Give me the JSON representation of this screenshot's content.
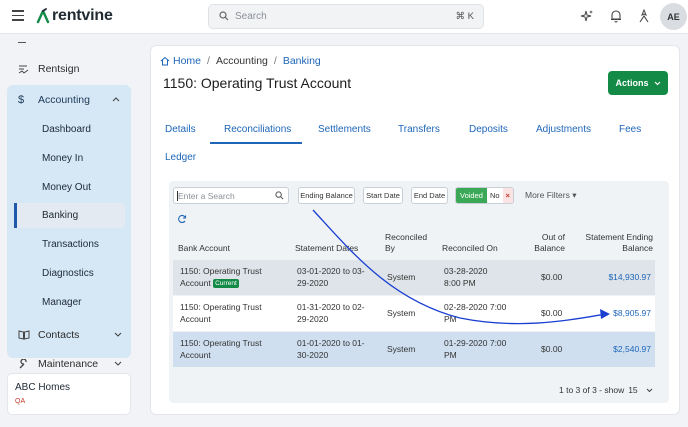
{
  "header": {
    "brand": "rentvine",
    "search_placeholder": "Search",
    "shortcut": "⌘ K",
    "avatar_initials": "AE"
  },
  "sidebar": {
    "items_top": [
      {
        "label": "Rentsign",
        "icon": "signature-icon"
      },
      {
        "label": "Accounting",
        "icon": "dollar-icon"
      }
    ],
    "accounting_sub": [
      "Dashboard",
      "Money In",
      "Money Out",
      "Banking",
      "Transactions",
      "Diagnostics",
      "Manager"
    ],
    "active_sub": "Banking",
    "items_bottom": [
      {
        "label": "Contacts",
        "icon": "book-icon"
      },
      {
        "label": "Maintenance",
        "icon": "wrench-icon"
      }
    ],
    "company": {
      "name": "ABC Homes",
      "tag": "QA"
    }
  },
  "breadcrumb": {
    "home": "Home",
    "accounting": "Accounting",
    "banking": "Banking"
  },
  "page_title": "1150: Operating Trust Account",
  "actions_label": "Actions",
  "tabs": [
    "Details",
    "Reconciliations",
    "Settlements",
    "Transfers",
    "Deposits",
    "Adjustments",
    "Fees",
    "Ledger"
  ],
  "active_tab": "Reconciliations",
  "filters": {
    "search_placeholder": "Enter a Search",
    "ending_balance": "Ending Balance",
    "start_date": "Start Date",
    "end_date": "End Date",
    "voided_label": "Voided",
    "voided_value": "No",
    "voided_clear": "×",
    "more_filters": "More Filters"
  },
  "table": {
    "headers": {
      "bank_account": "Bank Account",
      "statement_dates": "Statement Dates",
      "reconciled_by_1": "Reconciled",
      "reconciled_by_2": "By",
      "reconciled_on": "Reconciled On",
      "out_of_balance_1": "Out of",
      "out_of_balance_2": "Balance",
      "statement_ending_1": "Statement Ending",
      "statement_ending_2": "Balance"
    },
    "rows": [
      {
        "account_1": "1150: Operating Trust",
        "account_2": "Account",
        "badge": "Current",
        "dates_1": "03-01-2020 to 03-",
        "dates_2": "29-2020",
        "by": "System",
        "on_1": "03-28-2020",
        "on_2": "8:00 PM",
        "out": "$0.00",
        "ending": "$14,930.97"
      },
      {
        "account_1": "1150: Operating Trust",
        "account_2": "Account",
        "badge": "",
        "dates_1": "01-31-2020 to 02-",
        "dates_2": "29-2020",
        "by": "System",
        "on_1": "02-28-2020 7:00",
        "on_2": "PM",
        "out": "$0.00",
        "ending": "$8,905.97"
      },
      {
        "account_1": "1150: Operating Trust",
        "account_2": "Account",
        "badge": "",
        "dates_1": "01-01-2020 to 01-",
        "dates_2": "30-2020",
        "by": "System",
        "on_1": "01-29-2020 7:00",
        "on_2": "PM",
        "out": "$0.00",
        "ending": "$2,540.97"
      }
    ]
  },
  "pager": {
    "range": "1 to 3 of 3 - show",
    "page_size": "15"
  },
  "colors": {
    "brand_green": "#138a46",
    "link_blue": "#1e66b8",
    "annotation_arrow": "#1a3fd1"
  }
}
